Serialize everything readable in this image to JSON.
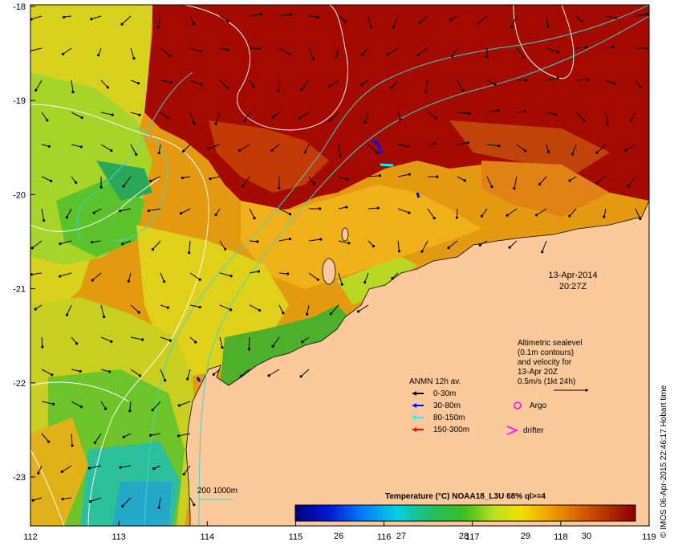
{
  "map": {
    "x_ticks": [
      "112",
      "113",
      "114",
      "115",
      "116",
      "117",
      "118",
      "119"
    ],
    "y_ticks": [
      "-18",
      "-19",
      "-20",
      "-21",
      "-22",
      "-23"
    ],
    "timestamp_date": "13-Apr-2014",
    "timestamp_time": "20:27Z",
    "altimetric_lines": [
      "Altimetric sealevel",
      "(0.1m contours)",
      "and velocity for",
      "13-Apr 20Z",
      "0.5m/s (1kt 24h)"
    ],
    "anmn_title": "ANMN 12h av.",
    "anmn_items": [
      {
        "label": "0-30m",
        "color": "#000000"
      },
      {
        "label": "30-80m",
        "color": "#0000ff"
      },
      {
        "label": "80-150m",
        "color": "#00ffff"
      },
      {
        "label": "150-300m",
        "color": "#ff0000"
      }
    ],
    "argo_label": "Argo",
    "drifter_label": "drifter",
    "bathy_label": "200  1000m",
    "colorbar_title": "Temperature (°C) NOAA18_L3U 68% ql>=4",
    "colorbar_ticks": [
      "26",
      "27",
      "28",
      "29",
      "30"
    ],
    "credit": "© IMOS 06-Apr-2015 22:46:17 Hobart time",
    "colors": {
      "land": "#fcc99b",
      "hot": "#9a0000",
      "warm": "#d4780c",
      "mid": "#e8a30f",
      "cool": "#cfd21a",
      "green": "#4caf2a",
      "teal": "#27b8b0",
      "cyan_line": "#3ad6cf"
    }
  }
}
